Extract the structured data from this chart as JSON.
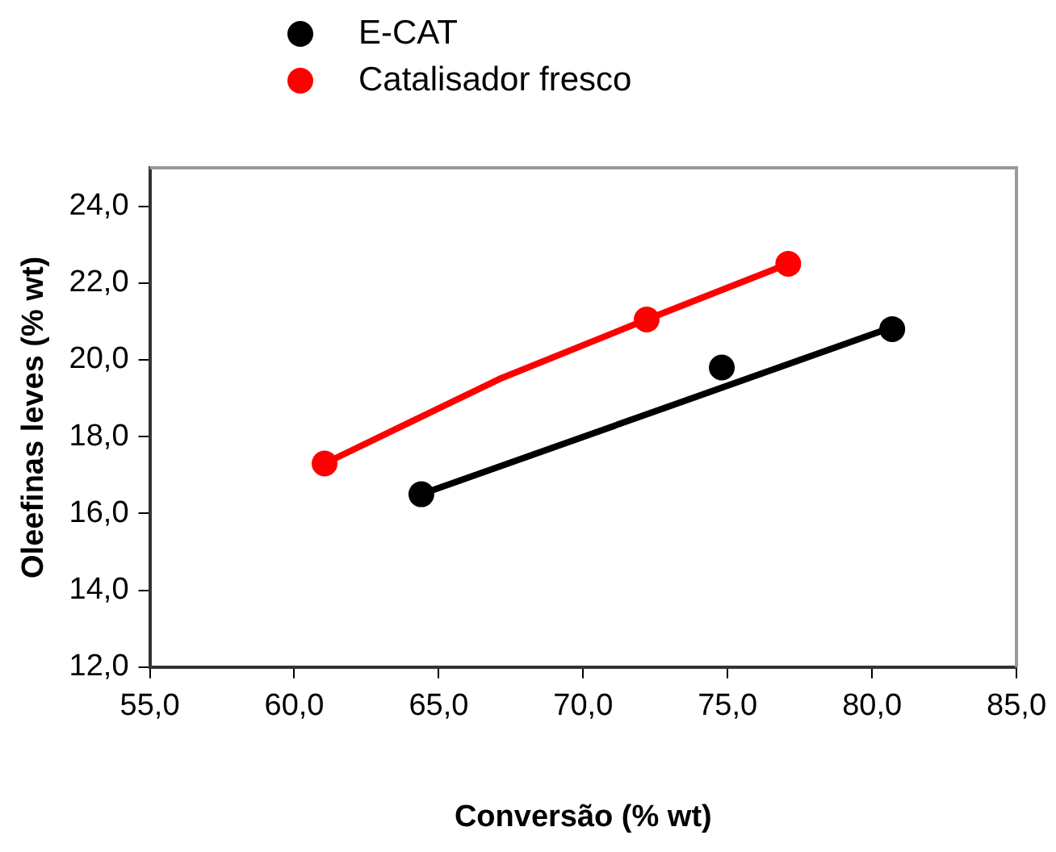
{
  "chart_data": {
    "type": "scatter",
    "xlabel": "Conversão (% wt)",
    "ylabel": "Oleefinas leves (% wt)",
    "xlim": [
      55,
      85
    ],
    "xticks": [
      {
        "value": 55,
        "label": "55,0"
      },
      {
        "value": 60,
        "label": "60,0"
      },
      {
        "value": 65,
        "label": "65,0"
      },
      {
        "value": 70,
        "label": "70,0"
      },
      {
        "value": 75,
        "label": "75,0"
      },
      {
        "value": 80,
        "label": "80,0"
      },
      {
        "value": 85,
        "label": "85,0"
      }
    ],
    "ylim": [
      12,
      25
    ],
    "yticks": [
      {
        "value": 12,
        "label": "12,0"
      },
      {
        "value": 14,
        "label": "14,0"
      },
      {
        "value": 16,
        "label": "16,0"
      },
      {
        "value": 18,
        "label": "18,0"
      },
      {
        "value": 20,
        "label": "20,0"
      },
      {
        "value": 22,
        "label": "22,0"
      },
      {
        "value": 24,
        "label": "24,0"
      }
    ],
    "grid": false,
    "legend": "top",
    "marker": "circle",
    "series": [
      {
        "type": "line",
        "marker": "none",
        "color": "#000000",
        "x": [
          64.4,
          80.7
        ],
        "values": [
          16.5,
          20.85
        ]
      },
      {
        "type": "line",
        "marker": "none",
        "color": "#ff0000",
        "x": [
          61.05,
          67.1,
          72.2,
          77.1
        ],
        "values": [
          17.3,
          19.5,
          21.05,
          22.5
        ]
      },
      {
        "name": "E-CAT",
        "color": "#000000",
        "x": [
          64.4,
          74.8,
          80.7
        ],
        "values": [
          16.5,
          19.8,
          20.8
        ]
      },
      {
        "name": "Catalisador fresco",
        "color": "#ff0000",
        "x": [
          61.05,
          72.2,
          77.1
        ],
        "values": [
          17.3,
          21.05,
          22.5
        ]
      }
    ]
  }
}
